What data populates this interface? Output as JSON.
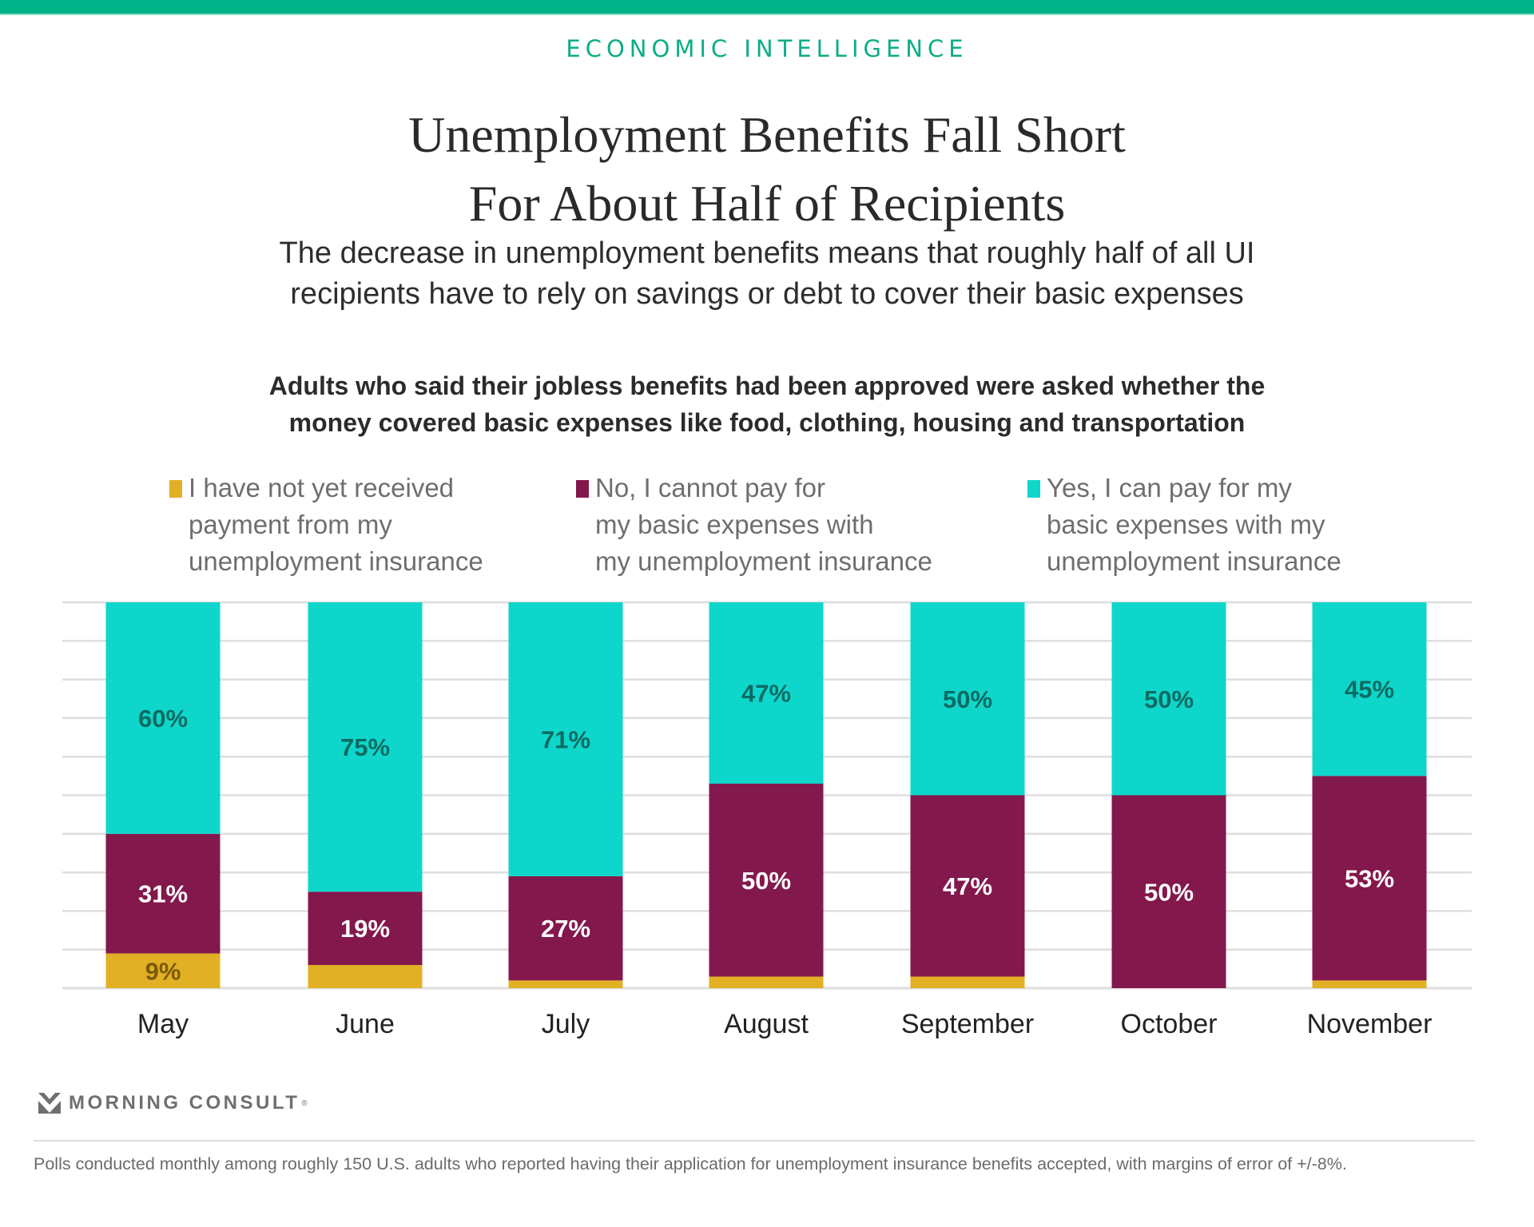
{
  "header": {
    "kicker": "ECONOMIC INTELLIGENCE",
    "title_line1": "Unemployment Benefits Fall Short",
    "title_line2": "For About Half of Recipients",
    "subtitle_line1": "The decrease in unemployment benefits means that roughly half of all UI",
    "subtitle_line2": "recipients have to rely on savings or debt to cover their basic expenses",
    "chart_title_line1": "Adults who said their jobless benefits had been approved were asked whether the",
    "chart_title_line2": "money covered basic expenses like food, clothing, housing and transportation"
  },
  "legend": [
    {
      "lines": [
        "I have not yet received",
        "payment from my",
        "unemployment insurance"
      ],
      "color": "#e2b024"
    },
    {
      "lines": [
        "No, I cannot pay for",
        "my basic expenses with",
        "my unemployment insurance"
      ],
      "color": "#83184c"
    },
    {
      "lines": [
        "Yes, I can pay for my",
        "basic expenses with my",
        "unemployment insurance"
      ],
      "color": "#0fd6cb"
    }
  ],
  "branding": {
    "logo_text": "MORNING CONSULT",
    "registered_mark": "®"
  },
  "footnote": "Polls conducted monthly among roughly 150 U.S. adults who reported having their application for unemployment insurance benefits accepted, with margins of error of +/-8%.",
  "chart_data": {
    "type": "bar",
    "stacked": true,
    "title": "Adults who said their jobless benefits had been approved were asked whether the money covered basic expenses like food, clothing, housing and transportation",
    "xlabel": "",
    "ylabel": "",
    "ylim": [
      0,
      100
    ],
    "grid": true,
    "legend_position": "top",
    "categories": [
      "May",
      "June",
      "July",
      "August",
      "September",
      "October",
      "November"
    ],
    "series": [
      {
        "name": "I have not yet received payment from my unemployment insurance",
        "color": "#e2b024",
        "label_color": "#7a5a0a",
        "values": [
          9,
          6,
          2,
          3,
          3,
          0,
          2
        ],
        "labels": [
          "9%",
          "",
          "",
          "",
          "",
          "",
          ""
        ]
      },
      {
        "name": "No, I cannot pay for my basic expenses with my unemployment insurance",
        "color": "#83184c",
        "label_color": "#ffffff",
        "values": [
          31,
          19,
          27,
          50,
          47,
          50,
          53
        ],
        "labels": [
          "31%",
          "19%",
          "27%",
          "50%",
          "47%",
          "50%",
          "53%"
        ]
      },
      {
        "name": "Yes, I can pay for my basic expenses with my unemployment insurance",
        "color": "#0fd6cb",
        "label_color": "#0b6b62",
        "values": [
          60,
          75,
          71,
          47,
          50,
          50,
          45
        ],
        "labels": [
          "60%",
          "75%",
          "71%",
          "47%",
          "50%",
          "50%",
          "45%"
        ]
      }
    ]
  }
}
